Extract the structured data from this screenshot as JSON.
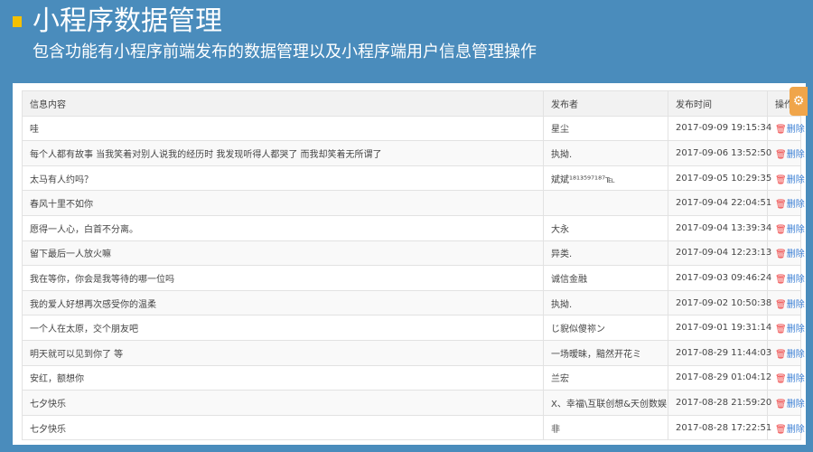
{
  "header": {
    "title": "小程序数据管理",
    "subtitle": "包含功能有小程序前端发布的数据管理以及小程序端用户信息管理操作"
  },
  "table": {
    "columns": [
      "信息内容",
      "发布者",
      "发布时间",
      "操作"
    ],
    "delete_label": "删除",
    "rows": [
      {
        "content": "哇",
        "author": "星尘",
        "time": "2017-09-09 19:15:34"
      },
      {
        "content": "每个人都有故事 当我笑着对别人说我的经历时 我发现听得人都哭了 而我却笑着无所谓了",
        "author": "执拗.",
        "time": "2017-09-06 13:52:50"
      },
      {
        "content": "太马有人约吗？",
        "author": "斌斌¹⁸¹³⁵⁹⁷¹⁸⁷℡",
        "time": "2017-09-05 10:29:35"
      },
      {
        "content": "春风十里不如你",
        "author": "",
        "time": "2017-09-04 22:04:51"
      },
      {
        "content": "愿得一人心，白首不分离。",
        "author": "大永",
        "time": "2017-09-04 13:39:34"
      },
      {
        "content": "留下最后一人放火嘛",
        "author": "异类.",
        "time": "2017-09-04 12:23:13"
      },
      {
        "content": "我在等你，你会是我等待的哪一位吗",
        "author": "诚信金融",
        "time": "2017-09-03 09:46:24"
      },
      {
        "content": "我的爱人好想再次感受你的温柔",
        "author": "执拗.",
        "time": "2017-09-02 10:50:38"
      },
      {
        "content": "一个人在太原，交个朋友吧",
        "author": "じ貎似傻祢ン",
        "time": "2017-09-01 19:31:14"
      },
      {
        "content": "明天就可以见到你了 等",
        "author": "一场暧昧，黯然开花ミ",
        "time": "2017-08-29 11:44:03"
      },
      {
        "content": "安红，额想你",
        "author": "兰宏",
        "time": "2017-08-29 01:04:12"
      },
      {
        "content": "七夕快乐",
        "author": "X、幸福\\互联创想&天创数娱",
        "time": "2017-08-28 21:59:20"
      },
      {
        "content": "七夕快乐",
        "author": "非",
        "time": "2017-08-28 17:22:51"
      }
    ]
  },
  "icons": {
    "delete": "trash-icon",
    "settings": "gear-icon"
  },
  "colors": {
    "background": "#4a8cbc",
    "accent": "#f5c000",
    "link": "#3a7fd5",
    "gear": "#f0a54a"
  }
}
